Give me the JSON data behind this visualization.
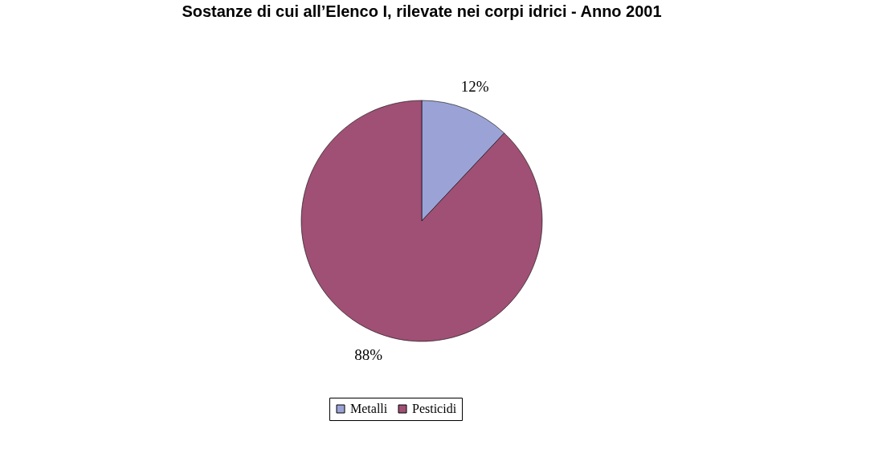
{
  "chart_data": {
    "type": "pie",
    "title": "Sostanze di cui all’Elenco I, rilevate nei corpi idrici - Anno 2001",
    "categories": [
      "Metalli",
      "Pesticidi"
    ],
    "values": [
      12,
      88
    ],
    "colors": [
      "#9ba3d6",
      "#a05075"
    ],
    "value_labels": [
      "12%",
      "88%"
    ],
    "legend": "bottom"
  }
}
